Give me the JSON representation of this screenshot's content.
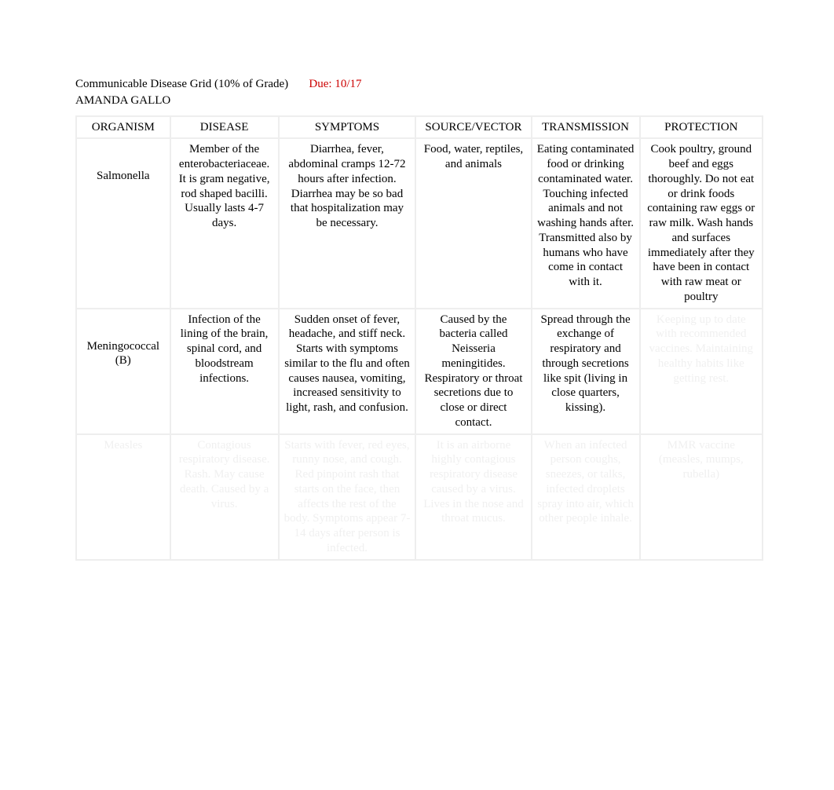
{
  "header": {
    "title_black": "Communicable Disease Grid (10% of Grade)",
    "title_red": "Due:  10/17",
    "author": "AMANDA GALLO"
  },
  "table": {
    "columns": [
      "ORGANISM",
      "DISEASE",
      "SYMPTOMS",
      "SOURCE/VECTOR",
      "TRANSMISSION",
      "PROTECTION"
    ],
    "column_widths": [
      "13%",
      "15%",
      "19%",
      "16%",
      "15%",
      "17%"
    ],
    "rows": [
      {
        "organism": "Salmonella",
        "disease": "Member of the enterobacteriaceae. It is gram negative, rod shaped bacilli.  Usually lasts 4-7 days.",
        "symptoms": "Diarrhea, fever, abdominal cramps 12-72 hours after infection. Diarrhea may be so bad that hospitalization may be necessary.",
        "source": "Food, water, reptiles, and animals",
        "transmission": "Eating contaminated food or drinking contaminated water. Touching infected animals and not washing hands after. Transmitted also by humans who have come in contact with it.",
        "protection": "Cook poultry, ground beef and eggs thoroughly. Do not eat or drink foods containing raw eggs or raw milk. Wash hands and surfaces immediately after they have been in contact with raw meat or poultry",
        "protection_faded": false
      },
      {
        "organism": "Meningococcal (B)",
        "disease": "Infection of the lining of the brain, spinal cord, and bloodstream infections.",
        "symptoms": "Sudden onset of fever, headache, and stiff neck. Starts with symptoms similar to the flu and often causes nausea, vomiting, increased sensitivity to light, rash, and confusion.",
        "source": "Caused by the bacteria called Neisseria meningitides. Respiratory or throat secretions due to close or direct contact.",
        "transmission": "Spread through the exchange of respiratory and through secretions like spit (living in close quarters, kissing).",
        "protection": "Keeping up to date with recommended vaccines. Maintaining healthy habits like getting rest.",
        "protection_faded": true
      },
      {
        "organism": "Measles",
        "disease": "Contagious respiratory disease. Rash. May cause death. Caused by a virus.",
        "symptoms": "Starts with fever, red eyes, runny nose, and cough. Red pinpoint rash that starts on the face, then affects the rest of the body. Symptoms appear 7-14 days after person is infected.",
        "source": "It is an airborne highly contagious respiratory disease caused by a virus. Lives in the nose and throat mucus.",
        "transmission": "When an infected person coughs, sneezes, or talks, infected droplets spray into air, which other people inhale.",
        "protection": "MMR vaccine (measles, mumps, rubella)",
        "protection_faded": false,
        "row_faded": true
      }
    ]
  },
  "colors": {
    "text": "#000000",
    "red": "#cc0000",
    "border": "#eeeeee",
    "faded": "#f0f0f0",
    "background": "#ffffff"
  },
  "typography": {
    "font_family": "Times New Roman",
    "base_font_size": 15
  }
}
